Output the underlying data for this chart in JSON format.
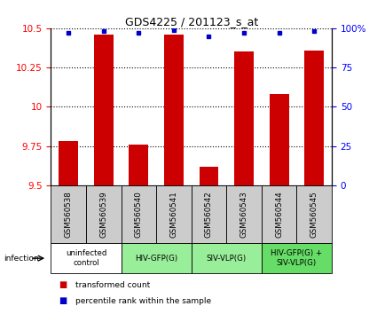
{
  "title": "GDS4225 / 201123_s_at",
  "samples": [
    "GSM560538",
    "GSM560539",
    "GSM560540",
    "GSM560541",
    "GSM560542",
    "GSM560543",
    "GSM560544",
    "GSM560545"
  ],
  "transformed_counts": [
    9.78,
    10.46,
    9.76,
    10.46,
    9.62,
    10.35,
    10.08,
    10.36
  ],
  "percentile_ranks": [
    97,
    98,
    97,
    99,
    95,
    97,
    97,
    98
  ],
  "ylim_left": [
    9.5,
    10.5
  ],
  "yticks_left": [
    9.5,
    9.75,
    10.0,
    10.25,
    10.5
  ],
  "ylim_right": [
    0,
    100
  ],
  "yticks_right": [
    0,
    25,
    50,
    75,
    100
  ],
  "bar_color": "#cc0000",
  "dot_color": "#0000cc",
  "bar_width": 0.55,
  "groups": [
    {
      "label": "uninfected\ncontrol",
      "start": 0,
      "end": 1,
      "color": "#ffffff"
    },
    {
      "label": "HIV-GFP(G)",
      "start": 2,
      "end": 3,
      "color": "#99ee99"
    },
    {
      "label": "SIV-VLP(G)",
      "start": 4,
      "end": 5,
      "color": "#99ee99"
    },
    {
      "label": "HIV-GFP(G) +\nSIV-VLP(G)",
      "start": 6,
      "end": 7,
      "color": "#66dd66"
    }
  ],
  "sample_bg_color": "#cccccc",
  "xlabel_infection": "infection",
  "legend_bar_label": "transformed count",
  "legend_dot_label": "percentile rank within the sample",
  "title_fontsize": 9,
  "tick_fontsize": 7.5,
  "label_fontsize": 7
}
